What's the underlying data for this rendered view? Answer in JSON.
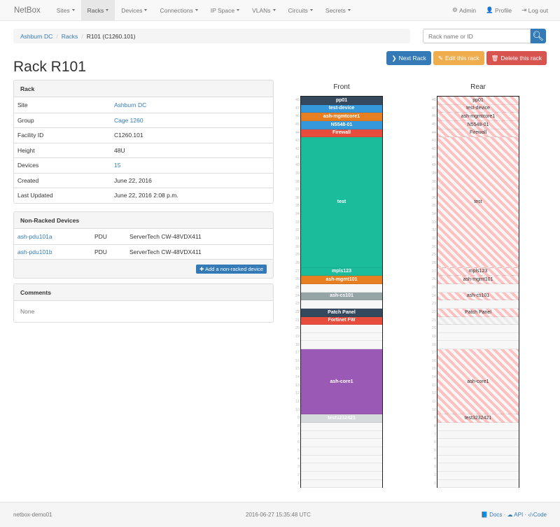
{
  "nav": {
    "brand": "NetBox",
    "items": [
      "Sites",
      "Racks",
      "Devices",
      "Connections",
      "IP Space",
      "VLANs",
      "Circuits",
      "Secrets"
    ],
    "active": "Racks",
    "right": [
      {
        "icon": "gear-icon",
        "label": "Admin"
      },
      {
        "icon": "user-icon",
        "label": "Profile"
      },
      {
        "icon": "logout-icon",
        "label": "Log out"
      }
    ]
  },
  "breadcrumb": [
    "Ashburn DC",
    "Racks",
    "R101 (C1260.101)"
  ],
  "search": {
    "placeholder": "Rack name or ID"
  },
  "actions": {
    "next": "Next Rack",
    "edit": "Edit this rack",
    "delete": "Delete this rack"
  },
  "title": "Rack R101",
  "rack_panel": {
    "heading": "Rack",
    "rows": [
      {
        "k": "Site",
        "v": "Ashburn DC",
        "link": true
      },
      {
        "k": "Group",
        "v": "Cage 1260",
        "link": true
      },
      {
        "k": "Facility ID",
        "v": "C1260.101"
      },
      {
        "k": "Height",
        "v": "48U"
      },
      {
        "k": "Devices",
        "v": "15",
        "link": true
      },
      {
        "k": "Created",
        "v": "June 22, 2016"
      },
      {
        "k": "Last Updated",
        "v": "June 22, 2016 2:08 p.m."
      }
    ]
  },
  "nonracked": {
    "heading": "Non-Racked Devices",
    "rows": [
      {
        "name": "ash-pdu101a",
        "role": "PDU",
        "type": "ServerTech CW-48VDX411"
      },
      {
        "name": "ash-pdu101b",
        "role": "PDU",
        "type": "ServerTech CW-48VDX411"
      }
    ],
    "add_label": "Add a non-racked device"
  },
  "comments": {
    "heading": "Comments",
    "body": "None"
  },
  "rack": {
    "front_label": "Front",
    "rear_label": "Rear",
    "height": 48,
    "devices": [
      {
        "name": "pp01",
        "unit": 48,
        "u": 1,
        "color": "#34495e",
        "rear": true
      },
      {
        "name": "test-device",
        "unit": 47,
        "u": 1,
        "color": "#3498db",
        "rear": true
      },
      {
        "name": "ash-mgmtcore1",
        "unit": 46,
        "u": 1,
        "color": "#e67e22",
        "rear": true
      },
      {
        "name": "N5548-01",
        "unit": 45,
        "u": 1,
        "color": "#3498db",
        "rear": true
      },
      {
        "name": "Firewall",
        "unit": 44,
        "u": 1,
        "color": "#e74c3c",
        "rear": true
      },
      {
        "name": "test",
        "unit": 28,
        "u": 16,
        "color": "#1abc9c",
        "rear": true
      },
      {
        "name": "mpls123",
        "unit": 27,
        "u": 1,
        "color": "#1abc9c",
        "rear": true
      },
      {
        "name": "ash-mgmt101",
        "unit": 26,
        "u": 1,
        "color": "#e67e22",
        "rear": true
      },
      {
        "name": "ash-cs101",
        "unit": 24,
        "u": 1,
        "color": "#95a5a6",
        "rear": true
      },
      {
        "name": "Patch Panel",
        "unit": 22,
        "u": 1,
        "color": "#34495e",
        "rear": true
      },
      {
        "name": "Fortinet FW",
        "unit": 21,
        "u": 1,
        "color": "#e74c3c",
        "rear": false
      },
      {
        "name": "ash-core1",
        "unit": 10,
        "u": 8,
        "color": "#9b59b6",
        "rear": true
      },
      {
        "name": "test3232421",
        "unit": 9,
        "u": 1,
        "color": "#d5dbdb",
        "rear": true
      }
    ]
  },
  "footer": {
    "host": "netbox-demo01",
    "time": "2016-06-27 15:35:48 UTC",
    "docs": "Docs",
    "api": "API",
    "code": "Code"
  }
}
